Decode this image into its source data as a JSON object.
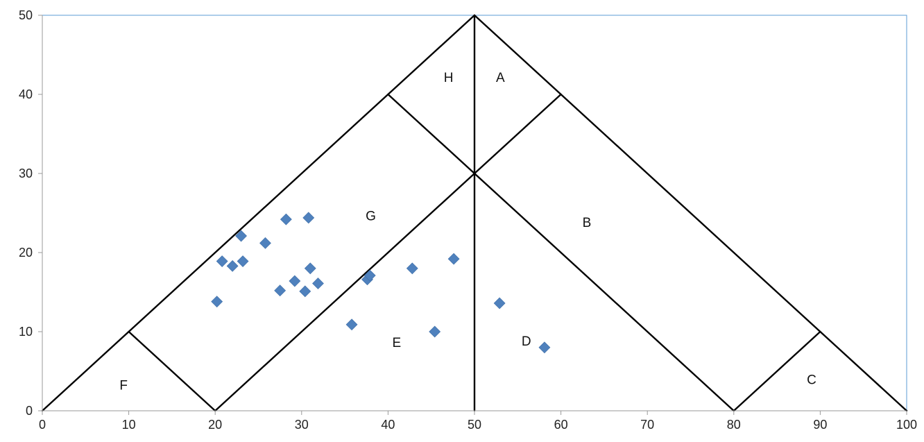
{
  "chart_data": {
    "type": "scatter",
    "title": "",
    "xlabel": "",
    "ylabel": "",
    "xlim": [
      0,
      100
    ],
    "ylim": [
      0,
      50
    ],
    "x_ticks": [
      0,
      10,
      20,
      30,
      40,
      50,
      60,
      70,
      80,
      90,
      100
    ],
    "y_ticks": [
      0,
      10,
      20,
      30,
      40,
      50
    ],
    "grid": false,
    "legend": "none",
    "marker": "diamond",
    "marker_color": "#4F81BD",
    "line_color": "#000000",
    "frame_color": "#5B9BD5",
    "boundary_lines": [
      [
        [
          0,
          0
        ],
        [
          50,
          50
        ]
      ],
      [
        [
          50,
          50
        ],
        [
          100,
          0
        ]
      ],
      [
        [
          50,
          50
        ],
        [
          50,
          0
        ]
      ],
      [
        [
          10,
          10
        ],
        [
          20,
          0
        ]
      ],
      [
        [
          20,
          0
        ],
        [
          50,
          30
        ]
      ],
      [
        [
          50,
          30
        ],
        [
          60,
          40
        ]
      ],
      [
        [
          40,
          40
        ],
        [
          50,
          30
        ]
      ],
      [
        [
          50,
          30
        ],
        [
          80,
          0
        ]
      ],
      [
        [
          80,
          0
        ],
        [
          90,
          10
        ]
      ]
    ],
    "region_labels": [
      {
        "text": "H",
        "x": 47,
        "y": 42
      },
      {
        "text": "A",
        "x": 53,
        "y": 42
      },
      {
        "text": "G",
        "x": 38,
        "y": 24.5
      },
      {
        "text": "B",
        "x": 63,
        "y": 23.7
      },
      {
        "text": "E",
        "x": 41,
        "y": 8.5
      },
      {
        "text": "D",
        "x": 56,
        "y": 8.7
      },
      {
        "text": "F",
        "x": 9.4,
        "y": 3.1
      },
      {
        "text": "C",
        "x": 89,
        "y": 3.8
      }
    ],
    "points": [
      {
        "x": 20.2,
        "y": 13.8
      },
      {
        "x": 20.8,
        "y": 18.9
      },
      {
        "x": 22.0,
        "y": 18.3
      },
      {
        "x": 23.0,
        "y": 22.1
      },
      {
        "x": 23.2,
        "y": 18.9
      },
      {
        "x": 25.8,
        "y": 21.2
      },
      {
        "x": 27.5,
        "y": 15.2
      },
      {
        "x": 28.2,
        "y": 24.2
      },
      {
        "x": 29.2,
        "y": 16.4
      },
      {
        "x": 30.4,
        "y": 15.1
      },
      {
        "x": 30.8,
        "y": 24.4
      },
      {
        "x": 31.0,
        "y": 18.0
      },
      {
        "x": 31.9,
        "y": 16.1
      },
      {
        "x": 35.8,
        "y": 10.9
      },
      {
        "x": 37.6,
        "y": 16.6
      },
      {
        "x": 37.9,
        "y": 17.1
      },
      {
        "x": 42.8,
        "y": 18.0
      },
      {
        "x": 45.4,
        "y": 10.0
      },
      {
        "x": 47.6,
        "y": 19.2
      },
      {
        "x": 52.9,
        "y": 13.6
      },
      {
        "x": 58.1,
        "y": 8.0
      }
    ]
  }
}
